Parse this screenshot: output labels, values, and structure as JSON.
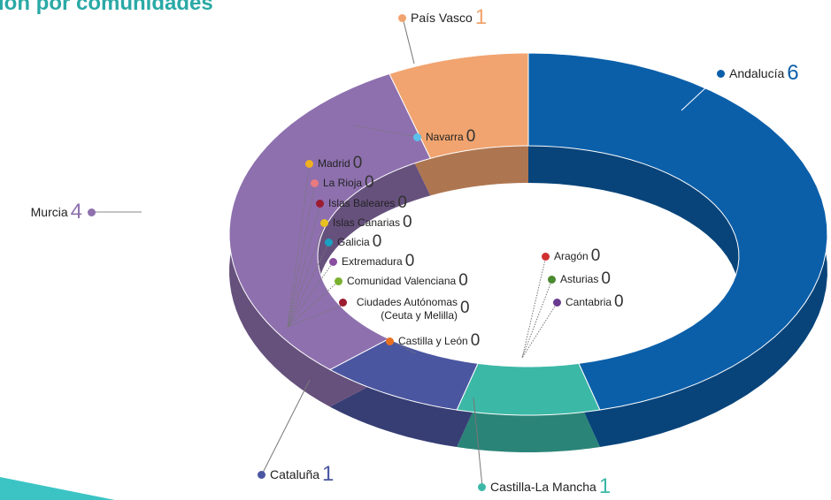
{
  "chart_data": {
    "type": "pie",
    "donut": true,
    "title": "ión por comunidades",
    "categories": [
      "Andalucía",
      "Castilla-La Mancha",
      "Cataluña",
      "Murcia",
      "País Vasco",
      "Navarra",
      "Madrid",
      "La Rioja",
      "Islas Baleares",
      "Islas Canarias",
      "Galicia",
      "Extremadura",
      "Comunidad Valenciana",
      "Ciudades Autónomas (Ceuta y Melilla)",
      "Castilla y León",
      "Aragón",
      "Asturias",
      "Cantabria"
    ],
    "values": [
      6,
      1,
      1,
      4,
      1,
      0,
      0,
      0,
      0,
      0,
      0,
      0,
      0,
      0,
      0,
      0,
      0,
      0
    ],
    "colors": [
      "#0b5fa9",
      "#3cb8a7",
      "#4b56a1",
      "#8e70ae",
      "#f1a46f",
      "#5bc0eb",
      "#f0b020",
      "#e87a80",
      "#9b1b30",
      "#e8c020",
      "#1aa0c0",
      "#8a4fa0",
      "#7ab030",
      "#9b1b30",
      "#e87020",
      "#d03030",
      "#4a8a30",
      "#6a3a90"
    ]
  }
}
